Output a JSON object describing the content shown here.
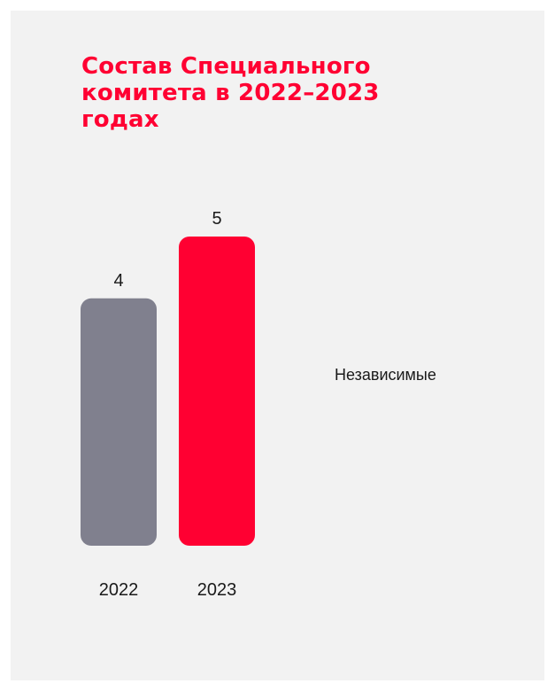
{
  "chart_data": {
    "type": "bar",
    "title": "Состав Специального комитета в 2022–2023 годах",
    "categories": [
      "2022",
      "2023"
    ],
    "series": [
      {
        "name": "Независимые",
        "values": [
          4,
          5
        ]
      }
    ],
    "data_labels": [
      "4",
      "5"
    ],
    "bar_colors": [
      "#80808e",
      "#ff0032"
    ],
    "ylim": [
      0,
      5
    ],
    "grid": false,
    "legend": "right",
    "xlabel": "",
    "ylabel": ""
  },
  "colors": {
    "title": "#ff0032",
    "panel_background": "#f2f2f2",
    "text": "#1a1a1a"
  }
}
